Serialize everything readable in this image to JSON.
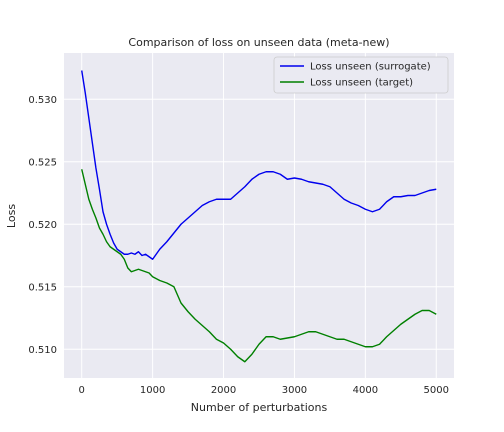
{
  "chart_data": {
    "type": "line",
    "title": "Comparison of loss on unseen data (meta-new)",
    "xlabel": "Number of perturbations",
    "ylabel": "Loss",
    "xlim": [
      -250,
      5250
    ],
    "ylim": [
      0.5077,
      0.5337
    ],
    "xticks": [
      0,
      1000,
      2000,
      3000,
      4000,
      5000
    ],
    "xtick_labels": [
      "0",
      "1000",
      "2000",
      "3000",
      "4000",
      "5000"
    ],
    "yticks": [
      0.51,
      0.515,
      0.52,
      0.525,
      0.53
    ],
    "ytick_labels": [
      "0.510",
      "0.515",
      "0.520",
      "0.525",
      "0.530"
    ],
    "grid": true,
    "legend_position": "top-right",
    "series": [
      {
        "name": "Loss unseen (surrogate)",
        "color": "#0000ee",
        "x": [
          0,
          50,
          100,
          150,
          200,
          250,
          300,
          350,
          400,
          450,
          500,
          550,
          600,
          650,
          700,
          750,
          800,
          850,
          900,
          950,
          1000,
          1100,
          1200,
          1300,
          1400,
          1500,
          1600,
          1700,
          1800,
          1900,
          2000,
          2100,
          2200,
          2300,
          2400,
          2500,
          2600,
          2700,
          2800,
          2900,
          3000,
          3100,
          3200,
          3300,
          3400,
          3500,
          3600,
          3700,
          3800,
          3900,
          4000,
          4100,
          4200,
          4300,
          4400,
          4500,
          4600,
          4700,
          4800,
          4900,
          5000
        ],
        "values": [
          0.5323,
          0.5305,
          0.5285,
          0.5265,
          0.5245,
          0.5228,
          0.521,
          0.52,
          0.5192,
          0.5185,
          0.518,
          0.5178,
          0.5176,
          0.5176,
          0.5177,
          0.5176,
          0.5178,
          0.5175,
          0.5176,
          0.5174,
          0.5172,
          0.518,
          0.5186,
          0.5193,
          0.52,
          0.5205,
          0.521,
          0.5215,
          0.5218,
          0.522,
          0.522,
          0.522,
          0.5225,
          0.523,
          0.5236,
          0.524,
          0.5242,
          0.5242,
          0.524,
          0.5236,
          0.5237,
          0.5236,
          0.5234,
          0.5233,
          0.5232,
          0.523,
          0.5225,
          0.522,
          0.5217,
          0.5215,
          0.5212,
          0.521,
          0.5212,
          0.5218,
          0.5222,
          0.5222,
          0.5223,
          0.5223,
          0.5225,
          0.5227,
          0.5228
        ]
      },
      {
        "name": "Loss unseen (target)",
        "color": "#008000",
        "x": [
          0,
          50,
          100,
          150,
          200,
          250,
          300,
          350,
          400,
          450,
          500,
          550,
          600,
          650,
          700,
          750,
          800,
          850,
          900,
          950,
          1000,
          1100,
          1200,
          1300,
          1400,
          1500,
          1600,
          1700,
          1800,
          1900,
          2000,
          2100,
          2200,
          2300,
          2400,
          2500,
          2600,
          2700,
          2800,
          2900,
          3000,
          3100,
          3200,
          3300,
          3400,
          3500,
          3600,
          3700,
          3800,
          3900,
          4000,
          4100,
          4200,
          4300,
          4400,
          4500,
          4600,
          4700,
          4800,
          4900,
          5000
        ],
        "values": [
          0.5244,
          0.5232,
          0.522,
          0.5212,
          0.5205,
          0.5197,
          0.5192,
          0.5186,
          0.5182,
          0.518,
          0.5178,
          0.5176,
          0.5172,
          0.5165,
          0.5162,
          0.5163,
          0.5164,
          0.5163,
          0.5162,
          0.5161,
          0.5158,
          0.5155,
          0.5153,
          0.515,
          0.5137,
          0.513,
          0.5124,
          0.5119,
          0.5114,
          0.5108,
          0.5105,
          0.51,
          0.5094,
          0.509,
          0.5096,
          0.5104,
          0.511,
          0.511,
          0.5108,
          0.5109,
          0.511,
          0.5112,
          0.5114,
          0.5114,
          0.5112,
          0.511,
          0.5108,
          0.5108,
          0.5106,
          0.5104,
          0.5102,
          0.5102,
          0.5104,
          0.511,
          0.5115,
          0.512,
          0.5124,
          0.5128,
          0.5131,
          0.5131,
          0.5128
        ]
      }
    ]
  }
}
